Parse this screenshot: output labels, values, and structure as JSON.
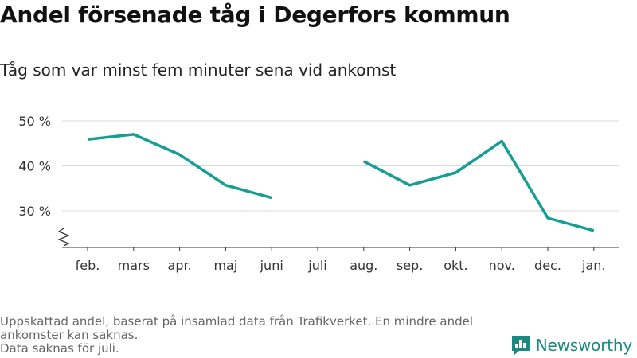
{
  "header": {
    "title": "Andel försenade tåg i Degerfors kommun",
    "subtitle": "Tåg som var minst fem minuter sena vid ankomst"
  },
  "chart_data": {
    "type": "line",
    "title": "Andel försenade tåg i Degerfors kommun",
    "subtitle": "Tåg som var minst fem minuter sena vid ankomst",
    "xlabel": "",
    "ylabel": "",
    "categories": [
      "feb.",
      "mars",
      "apr.",
      "maj",
      "juni",
      "juli",
      "aug.",
      "sep.",
      "okt.",
      "nov.",
      "dec.",
      "jan."
    ],
    "series": [
      {
        "values": [
          45.9,
          47.0,
          42.5,
          35.7,
          32.9,
          null,
          41.0,
          35.7,
          38.5,
          45.5,
          28.4,
          25.6
        ]
      }
    ],
    "yticks": [
      30,
      40,
      50
    ],
    "ytick_labels": [
      "30 %",
      "40 %",
      "50 %"
    ],
    "ylim": [
      22.5,
      50
    ],
    "y_axis_break": true,
    "grid": true,
    "line_color": "#159e94"
  },
  "footer": {
    "note_line1": "Uppskattad andel, baserat på insamlad data från Trafikverket. En mindre andel ankomster kan saknas.",
    "note_line2": "Data saknas för juli."
  },
  "brand": {
    "name": "Newsworthy",
    "logo_icon": "bar-chart-speech-bubble-icon"
  }
}
